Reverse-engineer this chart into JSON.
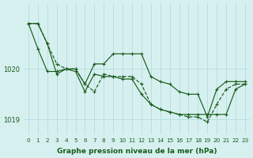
{
  "title": "Graphe pression niveau de la mer (hPa)",
  "xlabel": "Graphe pression niveau de la mer (hPa)",
  "hours": [
    0,
    1,
    2,
    3,
    4,
    5,
    6,
    7,
    8,
    9,
    10,
    11,
    12,
    13,
    14,
    15,
    16,
    17,
    18,
    19,
    20,
    21,
    22,
    23
  ],
  "line1": [
    1020.9,
    1020.9,
    1020.5,
    1019.9,
    1020.0,
    1020.0,
    1019.7,
    1020.1,
    1020.1,
    1020.3,
    1020.3,
    1020.3,
    1020.3,
    1019.85,
    1019.75,
    1019.7,
    1019.55,
    1019.5,
    1019.5,
    1019.05,
    1019.6,
    1019.75,
    1019.75,
    1019.75
  ],
  "line2": [
    1020.9,
    1020.4,
    1019.95,
    1019.95,
    1020.0,
    1019.95,
    1019.55,
    1019.9,
    1019.85,
    1019.85,
    1019.8,
    1019.8,
    1019.5,
    1019.3,
    1019.2,
    1019.15,
    1019.1,
    1019.1,
    1019.1,
    1019.1,
    1019.1,
    1019.1,
    1019.6,
    1019.7
  ],
  "line3": [
    1020.9,
    1020.9,
    1020.5,
    1020.1,
    1020.0,
    1020.0,
    1019.7,
    1019.55,
    1019.9,
    1019.85,
    1019.85,
    1019.85,
    1019.7,
    1019.3,
    1019.2,
    1019.15,
    1019.1,
    1019.05,
    1019.05,
    1018.95,
    1019.3,
    1019.6,
    1019.7,
    1019.7
  ],
  "bg_color": "#d6f0f0",
  "grid_color": "#b0d8d8",
  "line_color": "#1a5c1a",
  "ylim": [
    1018.7,
    1021.3
  ],
  "yticks": [
    1019,
    1020
  ],
  "xtick_labels": [
    "0",
    "1",
    "2",
    "3",
    "4",
    "5",
    "6",
    "7",
    "8",
    "9",
    "10",
    "11",
    "12",
    "13",
    "14",
    "15",
    "16",
    "17",
    "18",
    "19",
    "20",
    "21",
    "22",
    "23"
  ]
}
